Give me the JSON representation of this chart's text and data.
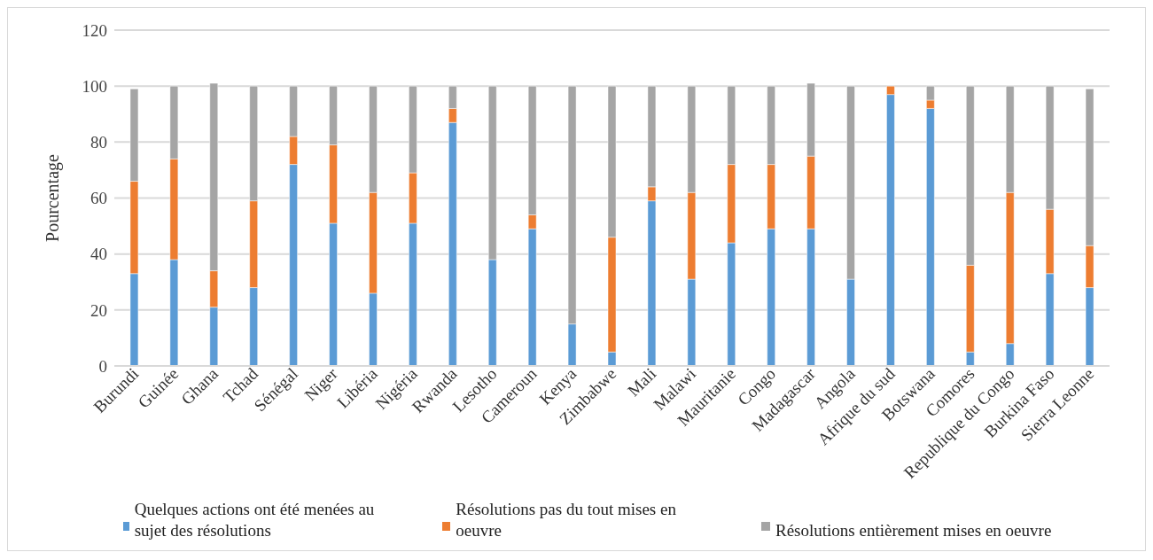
{
  "chart_data": {
    "type": "bar",
    "stacked": true,
    "ylabel": "Pourcentage",
    "ylim": [
      0,
      120
    ],
    "yticks": [
      0,
      20,
      40,
      60,
      80,
      100,
      120
    ],
    "grid": "y",
    "legend": "bottom",
    "categories": [
      "Burundi",
      "Guinée",
      "Ghana",
      "Tchad",
      "Sénégal",
      "Niger",
      "Libéria",
      "Nigéria",
      "Rwanda",
      "Lesotho",
      "Cameroun",
      "Kenya",
      "Zimbabwe",
      "Mali",
      "Malawi",
      "Mauritanie",
      "Congo",
      "Madagascar",
      "Angola",
      "Afrique du sud",
      "Botswana",
      "Comores",
      "Republique du Congo",
      "Burkina Faso",
      "Sierra Leonne"
    ],
    "series": [
      {
        "name": "Quelques actions ont été menées au sujet des résolutions",
        "color": "#5b9bd5",
        "values": [
          33,
          38,
          21,
          28,
          72,
          51,
          26,
          51,
          87,
          38,
          49,
          15,
          5,
          59,
          31,
          44,
          49,
          49,
          31,
          97,
          92,
          5,
          8,
          33,
          28
        ]
      },
      {
        "name": "Résolutions pas du tout mises en oeuvre",
        "color": "#ed7d31",
        "values": [
          33,
          36,
          13,
          31,
          10,
          28,
          36,
          18,
          5,
          0,
          5,
          0,
          41,
          5,
          31,
          28,
          23,
          26,
          0,
          3,
          3,
          31,
          54,
          23,
          15
        ]
      },
      {
        "name": "Résolutions entièrement mises en oeuvre",
        "color": "#a5a5a5",
        "values": [
          33,
          26,
          67,
          41,
          18,
          21,
          38,
          31,
          8,
          62,
          46,
          85,
          54,
          36,
          38,
          28,
          28,
          26,
          69,
          0,
          5,
          64,
          38,
          44,
          56
        ]
      }
    ]
  }
}
